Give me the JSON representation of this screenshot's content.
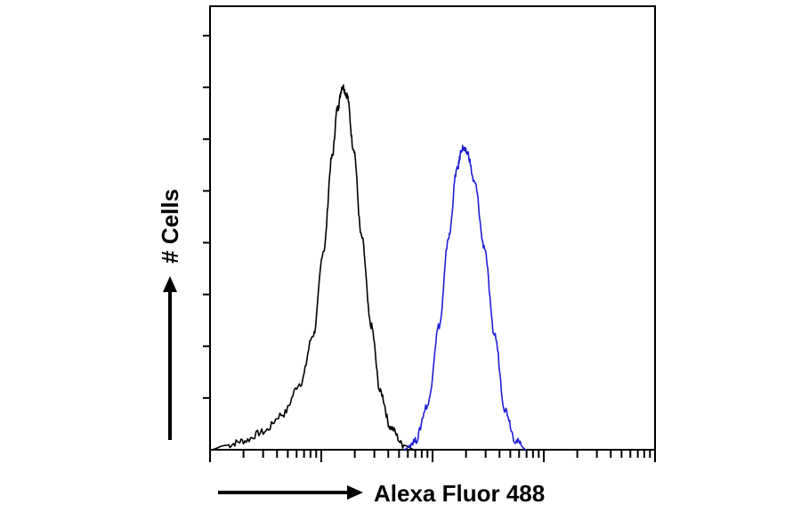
{
  "chart_data": {
    "type": "line",
    "title": "",
    "xlabel": "Alexa Fluor 488",
    "ylabel": "# Cells",
    "x_scale": "log",
    "xlim": [
      1,
      10000
    ],
    "ylim": [
      0,
      100
    ],
    "grid": false,
    "legend": "none",
    "series": [
      {
        "color": "#000000",
        "points": [
          [
            1.0,
            0
          ],
          [
            1.4,
            1
          ],
          [
            2.0,
            2
          ],
          [
            3.0,
            4
          ],
          [
            4.5,
            8
          ],
          [
            6.5,
            15
          ],
          [
            8.5,
            26
          ],
          [
            10.5,
            45
          ],
          [
            12.5,
            66
          ],
          [
            14.0,
            77
          ],
          [
            15.5,
            82
          ],
          [
            17.0,
            80
          ],
          [
            19.5,
            68
          ],
          [
            23.0,
            48
          ],
          [
            28.0,
            28
          ],
          [
            34.0,
            13
          ],
          [
            42.0,
            5
          ],
          [
            55.0,
            1
          ],
          [
            70.0,
            0
          ]
        ]
      },
      {
        "color": "#1f1fd6",
        "points": [
          [
            55.0,
            0
          ],
          [
            70.0,
            2
          ],
          [
            90.0,
            10
          ],
          [
            115.0,
            28
          ],
          [
            140.0,
            48
          ],
          [
            165.0,
            63
          ],
          [
            185.0,
            68
          ],
          [
            205.0,
            67
          ],
          [
            240.0,
            60
          ],
          [
            290.0,
            46
          ],
          [
            360.0,
            26
          ],
          [
            450.0,
            9
          ],
          [
            560.0,
            2
          ],
          [
            700.0,
            0
          ]
        ]
      }
    ]
  }
}
